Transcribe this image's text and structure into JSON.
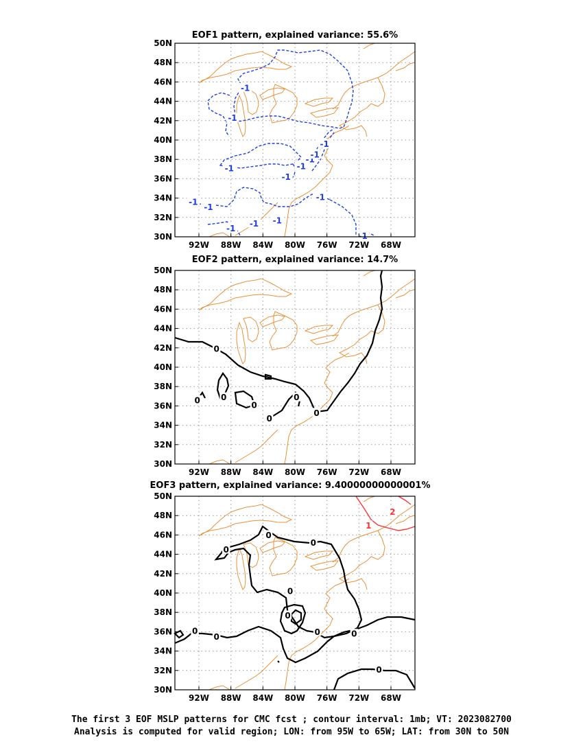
{
  "caption": {
    "line1": "The first 3 EOF MSLP patterns for CMC fcst ; contour interval: 1mb; VT: 2023082700",
    "line2": "Analysis is computed for valid region; LON: from 95W to 65W; LAT: from 30N to 50N"
  },
  "colors": {
    "coast": "#e8913a",
    "negative": "#1f3fe0",
    "zero": "#000000",
    "positive": "#ff3333",
    "grid": "#999999"
  },
  "chart_data": [
    {
      "type": "contour-map",
      "title": "EOF1 pattern, explained variance: 55.6%",
      "xlim": [
        -95,
        -65
      ],
      "ylim": [
        30,
        50
      ],
      "x_ticks": [
        "92W",
        "88W",
        "84W",
        "80W",
        "76W",
        "72W",
        "68W"
      ],
      "y_ticks": [
        "30N",
        "32N",
        "34N",
        "36N",
        "38N",
        "40N",
        "42N",
        "44N",
        "46N",
        "48N",
        "50N"
      ],
      "grid": true,
      "contour_labels": [
        {
          "text": "-1",
          "lon": -86.2,
          "lat": 45.4
        },
        {
          "text": "-1",
          "lon": -87.8,
          "lat": 42.3
        },
        {
          "text": "-1",
          "lon": -88.2,
          "lat": 37.1
        },
        {
          "text": "-1",
          "lon": -81.1,
          "lat": 36.2
        },
        {
          "text": "-1",
          "lon": -79.2,
          "lat": 37.3
        },
        {
          "text": "-1",
          "lon": -78.1,
          "lat": 38.0
        },
        {
          "text": "-1",
          "lon": -77.5,
          "lat": 38.5
        },
        {
          "text": "-1",
          "lon": -76.3,
          "lat": 39.6
        },
        {
          "text": "-1",
          "lon": -76.8,
          "lat": 34.1
        },
        {
          "text": "-1",
          "lon": -92.7,
          "lat": 33.6
        },
        {
          "text": "-1",
          "lon": -90.8,
          "lat": 33.1
        },
        {
          "text": "-1",
          "lon": -88.0,
          "lat": 30.9
        },
        {
          "text": "-1",
          "lon": -85.1,
          "lat": 31.4
        },
        {
          "text": "-1",
          "lon": -82.2,
          "lat": 31.7
        },
        {
          "text": "-1",
          "lon": -71.5,
          "lat": 30.1
        }
      ]
    },
    {
      "type": "contour-map",
      "title": "EOF2 pattern, explained variance: 14.7%",
      "xlim": [
        -95,
        -65
      ],
      "ylim": [
        30,
        50
      ],
      "x_ticks": [
        "92W",
        "88W",
        "84W",
        "80W",
        "76W",
        "72W",
        "68W"
      ],
      "y_ticks": [
        "30N",
        "32N",
        "34N",
        "36N",
        "38N",
        "40N",
        "42N",
        "44N",
        "46N",
        "48N",
        "50N"
      ],
      "grid": true,
      "contour_labels": [
        {
          "text": "0",
          "lon": -89.8,
          "lat": 41.9
        },
        {
          "text": "0",
          "lon": -92.2,
          "lat": 36.6
        },
        {
          "text": "0",
          "lon": -88.9,
          "lat": 36.9
        },
        {
          "text": "0",
          "lon": -85.1,
          "lat": 36.1
        },
        {
          "text": "0",
          "lon": -79.8,
          "lat": 36.9
        },
        {
          "text": "0",
          "lon": -77.3,
          "lat": 35.3
        },
        {
          "text": "0",
          "lon": -83.2,
          "lat": 34.7
        }
      ]
    },
    {
      "type": "contour-map",
      "title": "EOF3 pattern, explained variance: 9.40000000000001%",
      "xlim": [
        -95,
        -65
      ],
      "ylim": [
        30,
        50
      ],
      "x_ticks": [
        "92W",
        "88W",
        "84W",
        "80W",
        "76W",
        "72W",
        "68W"
      ],
      "y_ticks": [
        "30N",
        "32N",
        "34N",
        "36N",
        "38N",
        "40N",
        "42N",
        "44N",
        "46N",
        "48N",
        "50N"
      ],
      "grid": true,
      "contour_labels": [
        {
          "text": "0",
          "lon": -83.3,
          "lat": 46.0
        },
        {
          "text": "0",
          "lon": -77.7,
          "lat": 45.2
        },
        {
          "text": "0",
          "lon": -88.6,
          "lat": 44.5
        },
        {
          "text": "0",
          "lon": -80.6,
          "lat": 40.2
        },
        {
          "text": "0",
          "lon": -80.9,
          "lat": 37.7
        },
        {
          "text": "0",
          "lon": -77.2,
          "lat": 36.0
        },
        {
          "text": "0",
          "lon": -72.6,
          "lat": 35.8
        },
        {
          "text": "0",
          "lon": -92.5,
          "lat": 36.1
        },
        {
          "text": "0",
          "lon": -89.8,
          "lat": 35.5
        },
        {
          "text": "0",
          "lon": -69.5,
          "lat": 32.1
        },
        {
          "text": "1",
          "lon": -70.8,
          "lat": 47.0
        },
        {
          "text": "2",
          "lon": -67.8,
          "lat": 48.4
        }
      ]
    }
  ]
}
